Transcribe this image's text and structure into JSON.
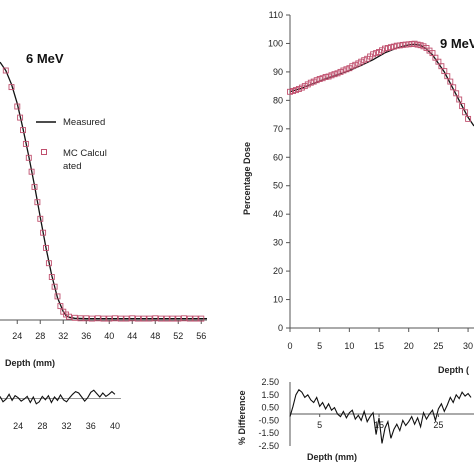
{
  "chart_data": [
    {
      "id": "left_main",
      "type": "line",
      "title": "6 MeV",
      "xlabel": "Depth (mm)",
      "ylabel": "",
      "xlim": [
        21,
        57
      ],
      "ylim": [
        0,
        110
      ],
      "x_ticks": [
        24,
        28,
        32,
        36,
        40,
        44,
        48,
        52,
        56
      ],
      "legend": {
        "placement": "right",
        "entries": [
          "Measured",
          "MC Calcul",
          "ated"
        ]
      },
      "series": [
        {
          "name": "Measured",
          "kind": "line",
          "color": "#111111",
          "x": [
            21.0,
            22.0,
            23.0,
            24.0,
            25.0,
            26.0,
            27.0,
            28.0,
            29.0,
            30.0,
            31.0,
            32.0,
            32.5,
            33.0,
            34.0,
            36.0,
            40.0,
            48.0,
            57.0
          ],
          "y": [
            93.0,
            90.0,
            85.0,
            78.0,
            69.0,
            59.0,
            48.5,
            37.0,
            26.0,
            16.0,
            8.0,
            3.0,
            1.6,
            1.0,
            0.6,
            0.5,
            0.5,
            0.5,
            0.5
          ]
        },
        {
          "name": "MC Calculated",
          "kind": "marker",
          "color": "#c0506e",
          "x": [
            22.0,
            23.0,
            24.0,
            24.5,
            25.0,
            25.5,
            26.0,
            26.5,
            27.0,
            27.5,
            28.0,
            28.5,
            29.0,
            29.5,
            30.0,
            30.5,
            31.0,
            31.5,
            32.0,
            32.5,
            33.0,
            34.0,
            35.0,
            36.0,
            37.0,
            38.0,
            39.0,
            40.0,
            41.0,
            42.0,
            43.0,
            44.0,
            45.0,
            46.0,
            47.0,
            48.0,
            49.0,
            50.0,
            51.0,
            52.0,
            53.0,
            54.0,
            55.0,
            56.0
          ],
          "y": [
            90.0,
            84.0,
            77.0,
            73.0,
            68.5,
            63.5,
            58.5,
            53.5,
            48.0,
            42.5,
            36.5,
            31.5,
            26.0,
            20.5,
            15.5,
            12.0,
            8.5,
            5.0,
            3.0,
            2.0,
            1.2,
            0.8,
            0.6,
            0.6,
            0.5,
            0.6,
            0.5,
            0.5,
            0.6,
            0.5,
            0.5,
            0.6,
            0.5,
            0.5,
            0.5,
            0.6,
            0.5,
            0.5,
            0.5,
            0.5,
            0.6,
            0.5,
            0.5,
            0.5
          ]
        }
      ]
    },
    {
      "id": "left_diff",
      "type": "line",
      "xlim": [
        21,
        41
      ],
      "ylim": [
        -2,
        3
      ],
      "x_ticks": [
        24,
        28,
        32,
        36,
        40
      ],
      "series": [
        {
          "name": "",
          "kind": "line",
          "color": "#111111",
          "x": [
            21.0,
            21.5,
            22.0,
            22.5,
            23.0,
            23.5,
            24.0,
            24.5,
            25.0,
            25.5,
            26.0,
            26.5,
            27.0,
            27.5,
            28.0,
            28.5,
            29.0,
            29.5,
            30.0,
            30.5,
            31.0,
            31.5,
            32.0,
            32.5,
            33.0,
            33.5,
            34.0,
            34.5,
            35.0,
            35.5,
            36.0,
            36.5,
            37.0,
            37.5,
            38.0,
            38.5,
            39.0,
            39.5,
            40.0
          ],
          "y": [
            0.3,
            -0.5,
            -0.1,
            0.6,
            -0.3,
            0.4,
            0.1,
            -0.4,
            -0.1,
            0.3,
            -0.6,
            0.2,
            -0.8,
            -0.5,
            0.3,
            -0.2,
            0.4,
            -0.6,
            0.2,
            -0.3,
            0.5,
            -0.2,
            -0.5,
            0.1,
            0.6,
            1.0,
            0.8,
            0.2,
            -0.4,
            0.1,
            0.9,
            1.2,
            0.7,
            0.2,
            0.8,
            0.3,
            0.6,
            1.0,
            0.6
          ]
        }
      ]
    },
    {
      "id": "right_main",
      "type": "line",
      "title": "9 MeV",
      "xlabel": "Depth (",
      "ylabel": "Percentage Dose",
      "xlim": [
        0,
        31
      ],
      "ylim": [
        0,
        110
      ],
      "x_ticks": [
        0,
        5,
        10,
        15,
        20,
        25,
        30
      ],
      "y_ticks": [
        0,
        10,
        20,
        30,
        40,
        50,
        60,
        70,
        80,
        90,
        100,
        110
      ],
      "x_tick_labels": [
        "0",
        "5",
        "10",
        "15",
        "20",
        "25",
        "30"
      ],
      "series": [
        {
          "name": "Measured",
          "kind": "line",
          "color": "#111111",
          "x": [
            0.0,
            2.0,
            4.0,
            6.0,
            8.0,
            10.0,
            12.0,
            14.0,
            16.0,
            18.0,
            20.0,
            21.0,
            22.0,
            23.0,
            24.0,
            25.0,
            26.0,
            27.0,
            28.0,
            29.0,
            30.0,
            31.0
          ],
          "y": [
            83.0,
            84.3,
            86.0,
            87.6,
            89.0,
            90.5,
            92.3,
            94.3,
            96.7,
            98.4,
            99.5,
            99.7,
            99.4,
            98.0,
            96.0,
            93.0,
            90.0,
            86.0,
            82.0,
            78.0,
            74.0,
            71.0
          ]
        },
        {
          "name": "MC Calculated",
          "kind": "marker",
          "color": "#c0506e",
          "x": [
            0.0,
            0.5,
            1.0,
            1.5,
            2.0,
            2.5,
            3.0,
            3.5,
            4.0,
            4.5,
            5.0,
            5.5,
            6.0,
            6.5,
            7.0,
            7.5,
            8.0,
            8.5,
            9.0,
            9.5,
            10.0,
            10.5,
            11.0,
            11.5,
            12.0,
            12.5,
            13.0,
            13.5,
            14.0,
            14.5,
            15.0,
            15.5,
            16.0,
            16.5,
            17.0,
            17.5,
            18.0,
            18.5,
            19.0,
            19.5,
            20.0,
            20.5,
            21.0,
            21.5,
            22.0,
            22.5,
            23.0,
            23.5,
            24.0,
            24.5,
            25.0,
            25.5,
            26.0,
            26.5,
            27.0,
            27.5,
            28.0,
            28.5,
            29.0,
            29.5,
            30.0
          ],
          "y": [
            83.0,
            83.3,
            83.6,
            84.0,
            84.5,
            85.0,
            85.6,
            86.2,
            86.6,
            87.1,
            87.5,
            87.8,
            88.2,
            88.4,
            88.8,
            89.2,
            89.5,
            90.0,
            90.5,
            90.9,
            91.3,
            92.0,
            92.5,
            93.0,
            93.6,
            94.1,
            94.6,
            95.4,
            96.2,
            96.6,
            97.0,
            97.6,
            98.2,
            98.4,
            98.7,
            98.9,
            99.2,
            99.3,
            99.5,
            99.6,
            99.7,
            99.8,
            99.9,
            99.6,
            99.4,
            99.0,
            98.4,
            97.5,
            96.6,
            95.0,
            93.6,
            92.0,
            90.3,
            88.5,
            86.6,
            84.6,
            82.5,
            80.3,
            78.0,
            75.8,
            73.5
          ]
        }
      ]
    },
    {
      "id": "right_diff",
      "type": "line",
      "xlabel": "Depth (mm)",
      "ylabel": "% Difference",
      "xlim": [
        0,
        31
      ],
      "ylim": [
        -2.5,
        2.5
      ],
      "x_ticks": [
        5,
        15,
        25
      ],
      "y_ticks": [
        -2.5,
        -1.5,
        -0.5,
        0.5,
        1.5,
        2.5
      ],
      "y_tick_labels": [
        "-2.50",
        "-1.50",
        "-0.50",
        "0.50",
        "1.50",
        "2.50"
      ],
      "series": [
        {
          "name": "",
          "kind": "line",
          "color": "#111111",
          "x": [
            0.0,
            0.5,
            1.0,
            1.5,
            2.0,
            2.5,
            3.0,
            3.5,
            4.0,
            4.5,
            5.0,
            5.5,
            6.0,
            6.5,
            7.0,
            7.5,
            8.0,
            8.5,
            9.0,
            9.5,
            10.0,
            10.5,
            11.0,
            11.5,
            12.0,
            12.5,
            13.0,
            13.5,
            14.0,
            14.5,
            15.0,
            15.5,
            16.0,
            16.5,
            17.0,
            17.5,
            18.0,
            18.5,
            19.0,
            19.5,
            20.0,
            20.5,
            21.0,
            21.5,
            22.0,
            22.5,
            23.0,
            23.5,
            24.0,
            24.5,
            25.0,
            25.5,
            26.0,
            26.5,
            27.0,
            27.5,
            28.0,
            28.5,
            29.0,
            29.5,
            30.0,
            30.5
          ],
          "y": [
            -0.2,
            0.6,
            1.5,
            1.9,
            1.7,
            1.3,
            1.5,
            1.1,
            0.9,
            1.3,
            0.6,
            0.9,
            0.4,
            0.8,
            0.3,
            0.5,
            0.0,
            -0.2,
            0.2,
            -0.3,
            0.1,
            0.3,
            -0.4,
            -0.1,
            -0.5,
            0.2,
            -0.6,
            -0.2,
            0.1,
            -1.6,
            -0.3,
            -2.3,
            -1.1,
            -0.6,
            -1.9,
            -1.2,
            -0.8,
            -1.3,
            -0.5,
            -0.9,
            -0.6,
            -0.2,
            -0.8,
            -0.3,
            -1.0,
            0.1,
            -0.4,
            0.0,
            0.3,
            -0.5,
            0.4,
            0.8,
            0.2,
            0.7,
            1.3,
            0.9,
            1.5,
            1.2,
            1.7,
            1.4,
            1.6,
            1.3
          ]
        }
      ]
    }
  ]
}
